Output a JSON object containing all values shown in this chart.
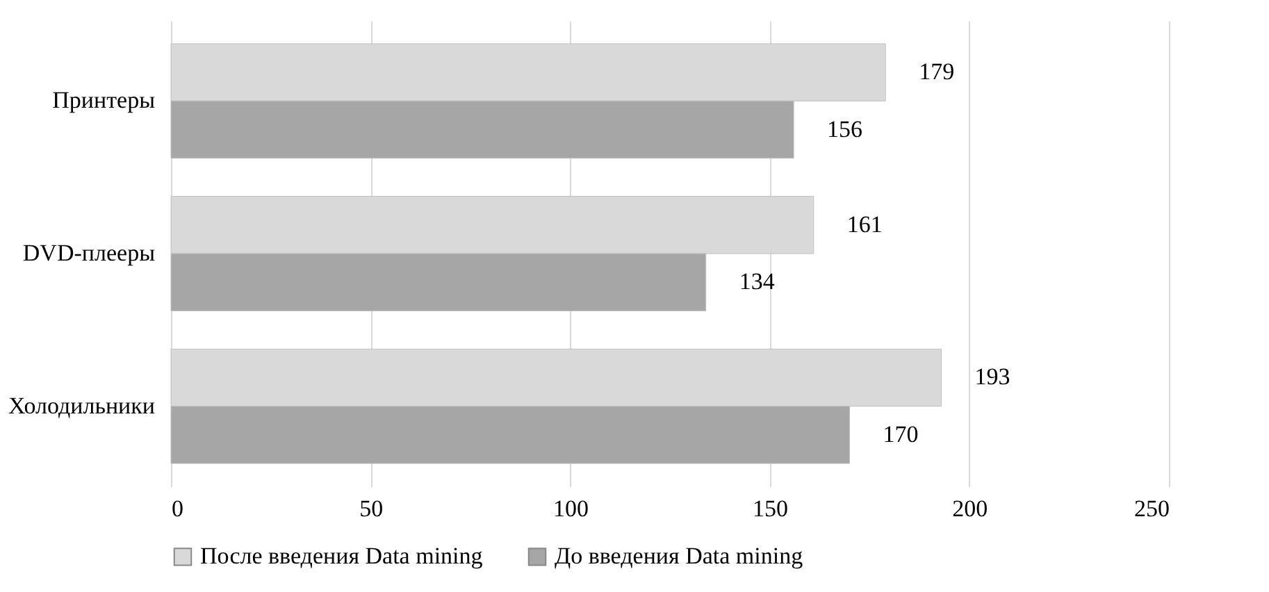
{
  "chart_data": {
    "type": "bar",
    "orientation": "horizontal",
    "categories": [
      "Принтеры",
      "DVD-плееры",
      "Холодильники"
    ],
    "series": [
      {
        "name": "После введения Data mining",
        "color": "#d9d9d9",
        "values": [
          179,
          161,
          193
        ]
      },
      {
        "name": "До введения Data mining",
        "color": "#a6a6a6",
        "values": [
          156,
          134,
          170
        ]
      }
    ],
    "xlim": [
      0,
      250
    ],
    "xticks": [
      0,
      50,
      100,
      150,
      200,
      250
    ],
    "grid": "x",
    "legend": "bottom",
    "data_labels": true
  }
}
